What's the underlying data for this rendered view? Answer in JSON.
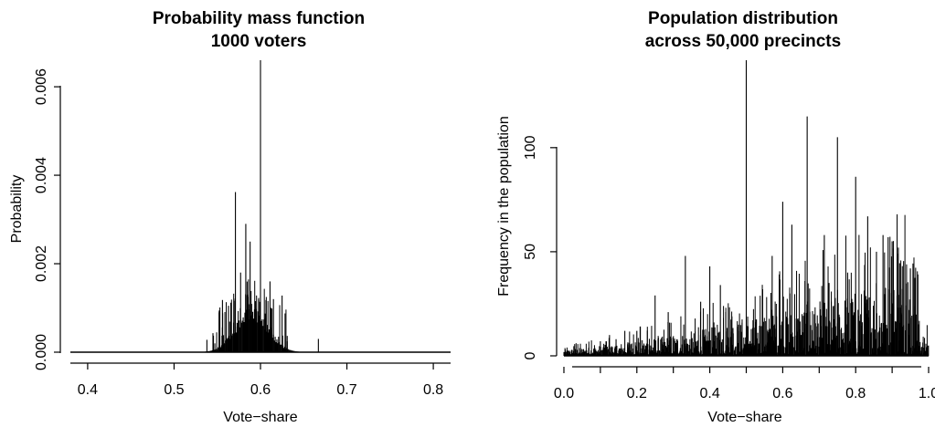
{
  "chart_data": [
    {
      "type": "bar",
      "title": "Probability mass function",
      "subtitle": "1000 voters",
      "xlabel": "Vote−share",
      "ylabel": "Probability",
      "xlim": [
        0.38,
        0.82
      ],
      "ylim": [
        0,
        0.0066
      ],
      "xticks": [
        "0.4",
        "0.5",
        "0.6",
        "0.7",
        "0.8"
      ],
      "yticks": [
        "0.000",
        "0.002",
        "0.004",
        "0.006"
      ],
      "grid": false,
      "bulk_mean": 0.59,
      "bulk_sd": 0.0185,
      "bulk_peak": 0.00088,
      "spikes": [
        {
          "x": 0.6,
          "y": 0.0066
        },
        {
          "x": 0.571,
          "y": 0.00362
        },
        {
          "x": 0.583,
          "y": 0.0029
        },
        {
          "x": 0.588,
          "y": 0.0025
        },
        {
          "x": 0.556,
          "y": 0.00118
        },
        {
          "x": 0.563,
          "y": 0.00105
        },
        {
          "x": 0.577,
          "y": 0.0018
        },
        {
          "x": 0.611,
          "y": 0.0016
        },
        {
          "x": 0.615,
          "y": 0.0012
        },
        {
          "x": 0.625,
          "y": 0.00128
        },
        {
          "x": 0.545,
          "y": 0.00043
        },
        {
          "x": 0.667,
          "y": 0.0003
        },
        {
          "x": 0.538,
          "y": 0.00028
        }
      ]
    },
    {
      "type": "bar",
      "title": "Population distribution",
      "subtitle": "across 50,000 precincts",
      "xlabel": "Vote−share",
      "ylabel": "Frequency in the population",
      "xlim": [
        -0.02,
        1.02
      ],
      "ylim": [
        0,
        142
      ],
      "xticks": [
        "0.0",
        "0.2",
        "0.4",
        "0.6",
        "0.8",
        "1.0"
      ],
      "yticks": [
        "0",
        "50",
        "100"
      ],
      "grid": false,
      "spikes": [
        {
          "x": 0.5,
          "y": 142
        },
        {
          "x": 0.667,
          "y": 115
        },
        {
          "x": 0.75,
          "y": 105
        },
        {
          "x": 0.8,
          "y": 86
        },
        {
          "x": 0.6,
          "y": 74
        },
        {
          "x": 0.833,
          "y": 67
        },
        {
          "x": 0.625,
          "y": 63
        },
        {
          "x": 0.714,
          "y": 58
        },
        {
          "x": 0.857,
          "y": 50
        },
        {
          "x": 0.875,
          "y": 58
        },
        {
          "x": 0.889,
          "y": 57
        },
        {
          "x": 0.9,
          "y": 55
        },
        {
          "x": 0.571,
          "y": 48
        },
        {
          "x": 0.333,
          "y": 48
        },
        {
          "x": 0.4,
          "y": 43
        },
        {
          "x": 0.25,
          "y": 29
        },
        {
          "x": 0.429,
          "y": 34
        },
        {
          "x": 0.375,
          "y": 26
        },
        {
          "x": 0.286,
          "y": 21
        },
        {
          "x": 0.2,
          "y": 12
        },
        {
          "x": 0.167,
          "y": 12
        },
        {
          "x": 0.545,
          "y": 32
        },
        {
          "x": 0.727,
          "y": 35
        },
        {
          "x": 0.778,
          "y": 40
        },
        {
          "x": 0.917,
          "y": 52
        },
        {
          "x": 0.95,
          "y": 42
        },
        {
          "x": 0.1,
          "y": 7
        },
        {
          "x": 0.125,
          "y": 10
        },
        {
          "x": 0.143,
          "y": 8
        }
      ]
    }
  ]
}
